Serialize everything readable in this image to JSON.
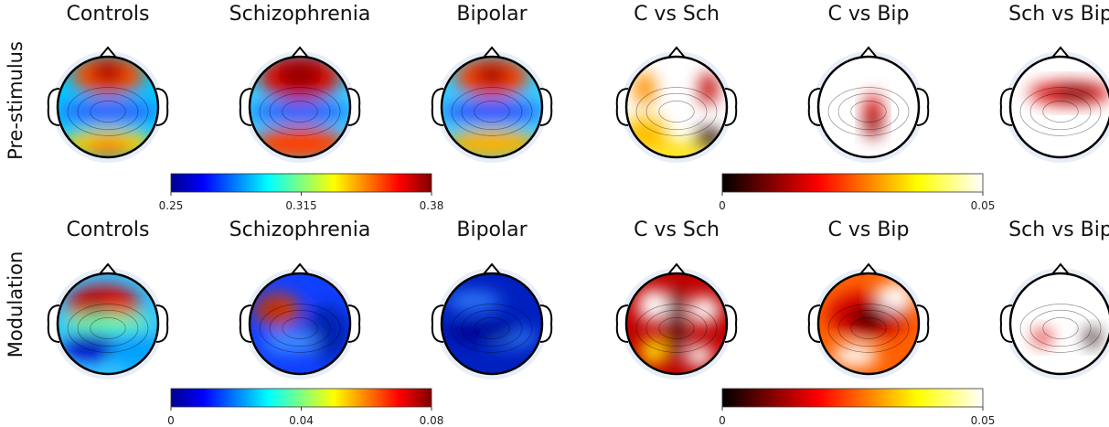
{
  "row_labels": [
    "Pre-stimulus",
    "Modulation"
  ],
  "rows": [
    {
      "titles": [
        "Controls",
        "Schizophrenia",
        "Bipolar",
        "C vs Sch",
        "C vs Bip",
        "Sch vs Bip"
      ],
      "colorbars": [
        {
          "ticks": [
            0.25,
            0.315,
            0.38
          ]
        },
        {
          "ticks": [
            0,
            0.05
          ]
        }
      ]
    },
    {
      "titles": [
        "Controls",
        "Schizophrenia",
        "Bipolar",
        "C vs Sch",
        "C vs Bip",
        "Sch vs Bip"
      ],
      "colorbars": [
        {
          "ticks": [
            0,
            0.04,
            0.08
          ]
        },
        {
          "ticks": [
            0,
            0.05
          ]
        }
      ]
    }
  ]
}
